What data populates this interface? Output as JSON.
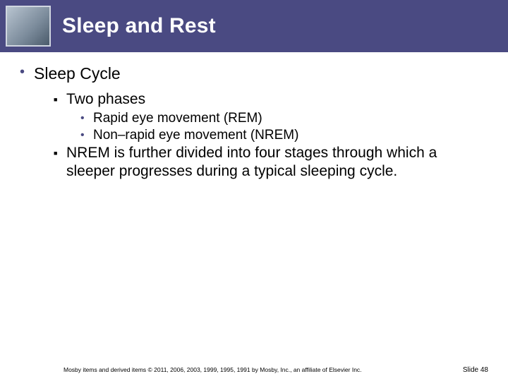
{
  "header": {
    "title": "Sleep and Rest",
    "bar_color": "#4a4a82",
    "title_color": "#ffffff",
    "title_fontsize": 30
  },
  "content": {
    "lvl1_bullet_color": "#4a4a82",
    "lvl2_bullet_color": "#000000",
    "lvl3_bullet_color": "#4a4a82",
    "items": [
      {
        "text": "Sleep Cycle",
        "children": [
          {
            "text": "Two phases",
            "children": [
              {
                "text": "Rapid eye movement (REM)"
              },
              {
                "text": "Non–rapid eye movement (NREM)"
              }
            ]
          },
          {
            "text": "NREM is further divided into four stages through which a sleeper progresses during a typical sleeping cycle."
          }
        ]
      }
    ]
  },
  "footer": {
    "copyright": "Mosby items and derived items © 2011, 2006, 2003, 1999, 1995, 1991 by Mosby, Inc., an affiliate of Elsevier Inc.",
    "slide_label": "Slide 48"
  }
}
